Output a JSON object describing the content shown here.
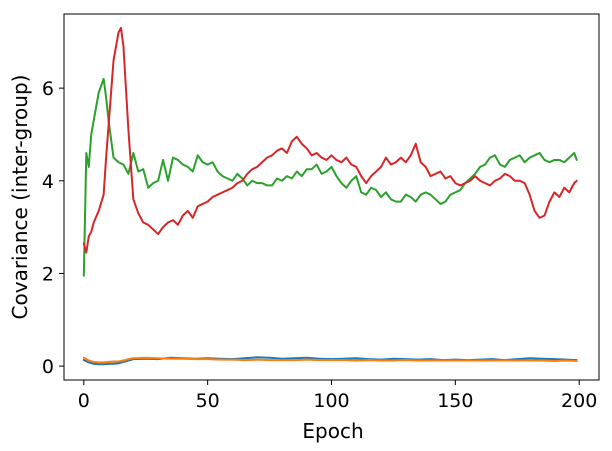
{
  "chart_data": {
    "type": "line",
    "xlabel": "Epoch",
    "ylabel": "Covariance (inter-group)",
    "xlim": [
      -8,
      208
    ],
    "ylim": [
      -0.3,
      7.6
    ],
    "xticks": [
      0,
      50,
      100,
      150,
      200
    ],
    "yticks": [
      0,
      2,
      4,
      6
    ],
    "grid": false,
    "legend": "none",
    "series": [
      {
        "color": "#1f77b4",
        "x": [
          0,
          2,
          4,
          6,
          8,
          10,
          12,
          14,
          16,
          18,
          20,
          25,
          30,
          35,
          40,
          45,
          50,
          55,
          60,
          65,
          70,
          75,
          80,
          85,
          90,
          95,
          100,
          105,
          110,
          115,
          120,
          125,
          130,
          135,
          140,
          145,
          150,
          155,
          160,
          165,
          170,
          175,
          180,
          185,
          190,
          195,
          199
        ],
        "values": [
          0.13,
          0.08,
          0.05,
          0.04,
          0.04,
          0.05,
          0.05,
          0.06,
          0.09,
          0.12,
          0.15,
          0.16,
          0.15,
          0.18,
          0.17,
          0.16,
          0.17,
          0.16,
          0.15,
          0.17,
          0.19,
          0.18,
          0.16,
          0.17,
          0.18,
          0.16,
          0.15,
          0.16,
          0.17,
          0.15,
          0.14,
          0.16,
          0.15,
          0.14,
          0.15,
          0.13,
          0.14,
          0.13,
          0.14,
          0.15,
          0.13,
          0.15,
          0.17,
          0.16,
          0.15,
          0.14,
          0.13
        ]
      },
      {
        "color": "#ff7f0e",
        "x": [
          0,
          2,
          4,
          6,
          8,
          10,
          12,
          14,
          16,
          18,
          20,
          25,
          30,
          35,
          40,
          45,
          50,
          55,
          60,
          65,
          70,
          75,
          80,
          85,
          90,
          95,
          100,
          105,
          110,
          115,
          120,
          125,
          130,
          135,
          140,
          145,
          150,
          155,
          160,
          165,
          170,
          175,
          180,
          185,
          190,
          195,
          199
        ],
        "values": [
          0.18,
          0.12,
          0.09,
          0.08,
          0.08,
          0.09,
          0.1,
          0.1,
          0.12,
          0.15,
          0.17,
          0.18,
          0.17,
          0.16,
          0.16,
          0.15,
          0.15,
          0.14,
          0.14,
          0.13,
          0.14,
          0.13,
          0.13,
          0.13,
          0.14,
          0.13,
          0.13,
          0.13,
          0.12,
          0.13,
          0.12,
          0.12,
          0.13,
          0.12,
          0.12,
          0.12,
          0.12,
          0.12,
          0.12,
          0.12,
          0.12,
          0.12,
          0.12,
          0.12,
          0.11,
          0.12,
          0.11
        ]
      },
      {
        "color": "#2ca02c",
        "x": [
          0,
          1,
          2,
          3,
          4,
          6,
          8,
          9,
          10,
          12,
          14,
          16,
          18,
          20,
          22,
          24,
          26,
          28,
          30,
          32,
          34,
          36,
          38,
          40,
          42,
          44,
          46,
          48,
          50,
          52,
          54,
          56,
          58,
          60,
          62,
          64,
          66,
          68,
          70,
          72,
          74,
          76,
          78,
          80,
          82,
          84,
          86,
          88,
          90,
          92,
          94,
          96,
          98,
          100,
          102,
          104,
          106,
          108,
          110,
          112,
          114,
          116,
          118,
          120,
          122,
          124,
          126,
          128,
          130,
          132,
          134,
          136,
          138,
          140,
          142,
          144,
          146,
          148,
          150,
          152,
          154,
          156,
          158,
          160,
          162,
          164,
          166,
          168,
          170,
          172,
          174,
          176,
          178,
          180,
          182,
          184,
          186,
          188,
          190,
          192,
          194,
          196,
          198,
          199
        ],
        "values": [
          1.95,
          4.6,
          4.3,
          5.0,
          5.3,
          5.9,
          6.2,
          5.8,
          5.3,
          4.5,
          4.4,
          4.35,
          4.15,
          4.6,
          4.2,
          4.25,
          3.85,
          3.95,
          4.0,
          4.45,
          4.0,
          4.5,
          4.45,
          4.35,
          4.3,
          4.2,
          4.55,
          4.4,
          4.35,
          4.4,
          4.2,
          4.1,
          4.05,
          4.0,
          4.15,
          4.05,
          3.9,
          4.0,
          3.95,
          3.95,
          3.9,
          3.9,
          4.05,
          4.0,
          4.1,
          4.05,
          4.2,
          4.1,
          4.25,
          4.25,
          4.35,
          4.15,
          4.2,
          4.3,
          4.1,
          3.95,
          3.85,
          4.0,
          4.1,
          3.75,
          3.7,
          3.85,
          3.8,
          3.65,
          3.75,
          3.6,
          3.55,
          3.55,
          3.7,
          3.65,
          3.55,
          3.7,
          3.75,
          3.7,
          3.6,
          3.5,
          3.55,
          3.7,
          3.75,
          3.8,
          3.95,
          4.05,
          4.15,
          4.3,
          4.35,
          4.5,
          4.55,
          4.35,
          4.3,
          4.45,
          4.5,
          4.55,
          4.4,
          4.5,
          4.55,
          4.6,
          4.45,
          4.4,
          4.45,
          4.45,
          4.4,
          4.5,
          4.6,
          4.45
        ]
      },
      {
        "color": "#d62728",
        "x": [
          0,
          1,
          2,
          3,
          4,
          6,
          8,
          9,
          10,
          12,
          14,
          15,
          16,
          18,
          20,
          22,
          24,
          26,
          28,
          30,
          32,
          34,
          36,
          38,
          40,
          42,
          44,
          46,
          48,
          50,
          52,
          54,
          56,
          58,
          60,
          62,
          64,
          66,
          68,
          70,
          72,
          74,
          76,
          78,
          80,
          82,
          84,
          86,
          88,
          90,
          92,
          94,
          96,
          98,
          100,
          102,
          104,
          106,
          108,
          110,
          112,
          114,
          116,
          118,
          120,
          122,
          124,
          126,
          128,
          130,
          132,
          134,
          136,
          138,
          140,
          142,
          144,
          146,
          148,
          150,
          152,
          154,
          156,
          158,
          160,
          162,
          164,
          166,
          168,
          170,
          172,
          174,
          176,
          178,
          180,
          182,
          184,
          186,
          188,
          190,
          192,
          194,
          196,
          198,
          199
        ],
        "values": [
          2.65,
          2.45,
          2.8,
          2.9,
          3.1,
          3.35,
          3.7,
          4.5,
          5.2,
          6.6,
          7.2,
          7.3,
          6.9,
          5.1,
          3.6,
          3.3,
          3.1,
          3.05,
          2.95,
          2.85,
          3.0,
          3.1,
          3.15,
          3.05,
          3.25,
          3.35,
          3.2,
          3.45,
          3.5,
          3.55,
          3.65,
          3.7,
          3.75,
          3.8,
          3.85,
          3.95,
          4.0,
          4.15,
          4.25,
          4.3,
          4.4,
          4.5,
          4.55,
          4.65,
          4.7,
          4.6,
          4.85,
          4.95,
          4.8,
          4.7,
          4.55,
          4.6,
          4.5,
          4.45,
          4.55,
          4.45,
          4.4,
          4.5,
          4.35,
          4.3,
          4.1,
          3.95,
          4.1,
          4.2,
          4.3,
          4.5,
          4.35,
          4.4,
          4.5,
          4.4,
          4.55,
          4.8,
          4.4,
          4.3,
          4.1,
          4.15,
          4.2,
          4.05,
          4.1,
          3.95,
          3.9,
          3.95,
          4.0,
          4.1,
          4.0,
          3.95,
          3.9,
          4.0,
          4.05,
          4.15,
          4.1,
          4.0,
          4.0,
          3.95,
          3.7,
          3.35,
          3.2,
          3.25,
          3.55,
          3.75,
          3.65,
          3.85,
          3.75,
          3.95,
          4.0
        ]
      }
    ]
  }
}
